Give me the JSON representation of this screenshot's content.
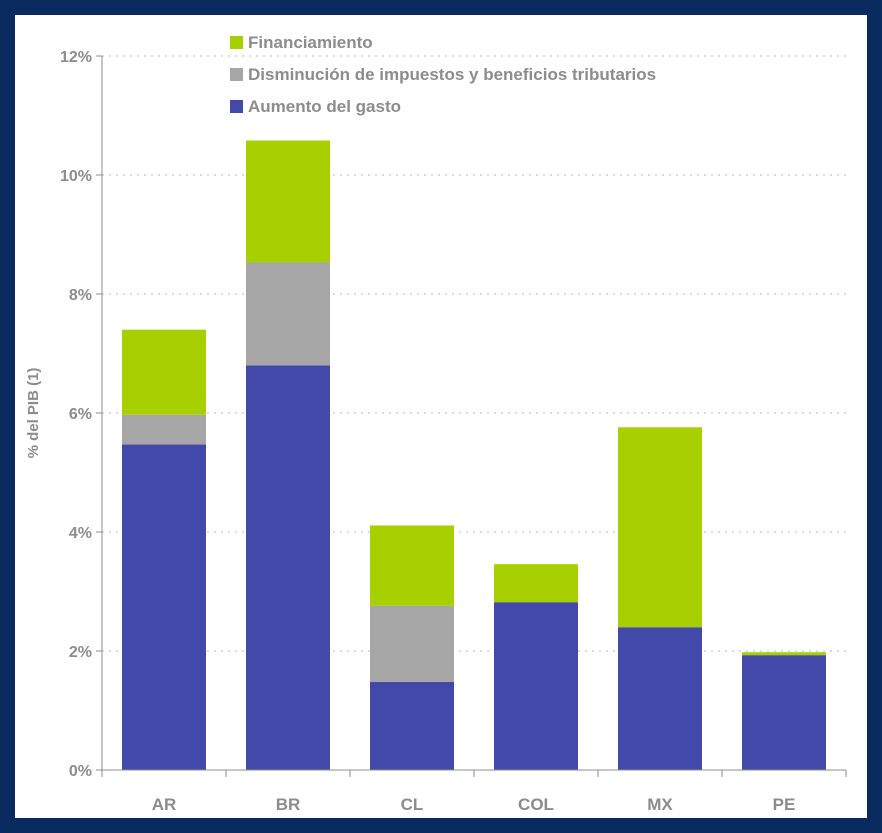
{
  "chart_data": {
    "type": "bar",
    "stacked": true,
    "categories": [
      "AR",
      "BR",
      "CL",
      "COL",
      "MX",
      "PE"
    ],
    "series": [
      {
        "name": "Aumento del gasto",
        "color": "#4349a8",
        "values": [
          5.47,
          6.8,
          1.48,
          2.82,
          2.4,
          1.93
        ]
      },
      {
        "name": "Disminución de impuestos y beneficios tributarios",
        "color": "#a6a6a6",
        "values": [
          0.5,
          1.73,
          1.28,
          0.0,
          0.0,
          0.0
        ]
      },
      {
        "name": "Financiamiento",
        "color": "#a8d000",
        "values": [
          1.43,
          2.05,
          1.35,
          0.64,
          3.36,
          0.05
        ]
      }
    ],
    "ylabel": "% del PIB (1)",
    "ylim": [
      0,
      12
    ],
    "yticks": [
      "0%",
      "2%",
      "4%",
      "6%",
      "8%",
      "10%",
      "12%"
    ],
    "grid": true,
    "legend_position": "top-left",
    "legend_order": [
      "Financiamiento",
      "Disminución de impuestos y beneficios tributarios",
      "Aumento del gasto"
    ]
  }
}
